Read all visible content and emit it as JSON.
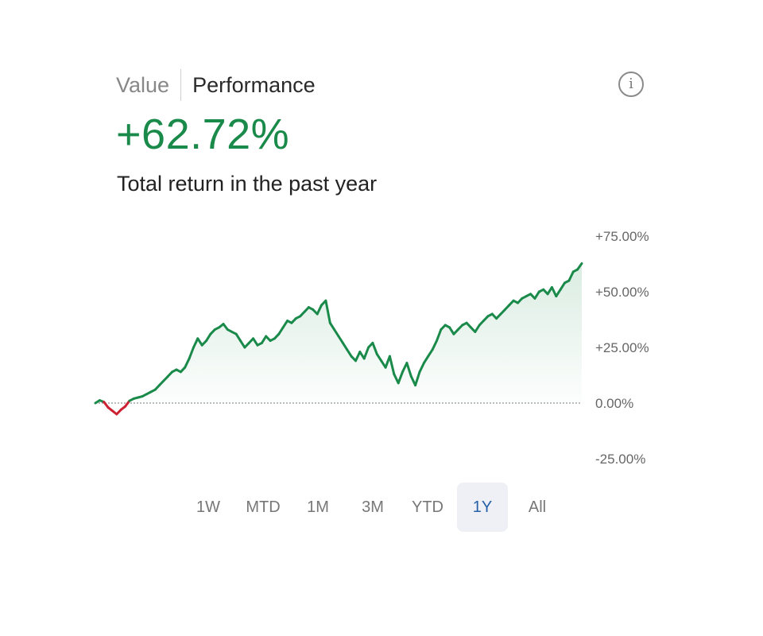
{
  "header": {
    "tabs": [
      "Value",
      "Performance"
    ],
    "active_tab": "Performance"
  },
  "info_icon": "info-icon",
  "summary": {
    "return_value": "+62.72%",
    "description": "Total return in the past year"
  },
  "ranges": {
    "options": [
      "1W",
      "MTD",
      "1M",
      "3M",
      "YTD",
      "1Y",
      "All"
    ],
    "selected": "1Y"
  },
  "colors": {
    "positive": "#1a8a4a",
    "negative": "#cc2233",
    "selected_range_text": "#2560a8",
    "selected_range_bg": "#eef0f5"
  },
  "chart_data": {
    "type": "area",
    "title": "",
    "xlabel": "",
    "ylabel": "",
    "ylim": [
      -25,
      75
    ],
    "y_ticks": [
      "+75.00%",
      "+50.00%",
      "+25.00%",
      "0.00%",
      "-25.00%"
    ],
    "baseline": 0,
    "grid": false,
    "series": [
      {
        "values": [
          0,
          1.2,
          0.5,
          -2,
          -3.5,
          -5,
          -3,
          -1.5,
          1,
          2,
          2.5,
          3,
          4,
          5,
          6,
          8,
          10,
          12,
          14,
          15,
          14,
          16,
          20,
          25,
          29,
          26,
          28,
          31,
          33,
          34,
          35.5,
          33,
          32,
          31,
          28,
          25,
          27,
          29,
          26,
          27,
          30,
          28,
          29,
          31,
          34,
          37,
          36,
          38,
          39,
          41,
          43,
          42,
          40,
          44,
          46,
          36,
          33,
          30,
          27,
          24,
          21,
          19,
          23,
          20,
          25,
          27,
          22,
          19,
          16,
          21,
          13,
          9,
          14,
          18,
          12,
          8,
          14,
          18,
          21,
          24,
          28,
          33,
          35,
          34,
          31,
          33,
          35,
          36,
          34,
          32,
          35,
          37,
          39,
          40,
          38,
          40,
          42,
          44,
          46,
          45,
          47,
          48,
          49,
          47,
          50,
          51,
          49,
          52,
          48,
          51,
          54,
          55,
          59,
          60,
          62.72
        ]
      }
    ]
  }
}
